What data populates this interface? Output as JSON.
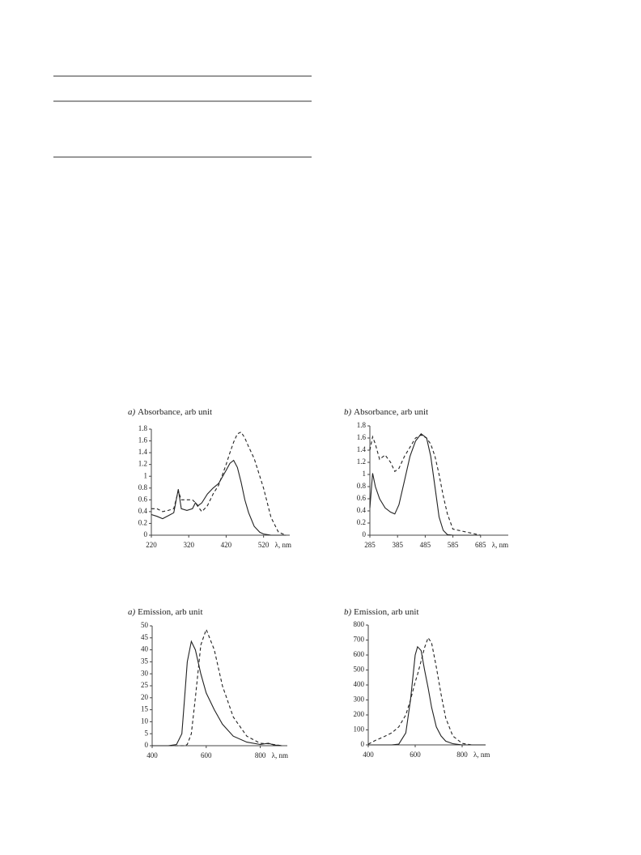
{
  "chart_data": [
    {
      "type": "line",
      "panel": "a)",
      "title": "Absorbance, arb unit",
      "x_label": "λ, nm",
      "x": [
        220,
        235,
        250,
        265,
        280,
        292,
        300,
        315,
        330,
        338,
        345,
        355,
        370,
        385,
        400,
        420,
        430,
        440,
        450,
        460,
        470,
        480,
        495,
        510,
        520,
        540,
        560,
        580
      ],
      "series": [
        {
          "color": "#222222",
          "dash": false,
          "values": [
            0.35,
            0.32,
            0.28,
            0.33,
            0.38,
            0.78,
            0.45,
            0.42,
            0.45,
            0.55,
            0.5,
            0.55,
            0.7,
            0.8,
            0.88,
            1.1,
            1.22,
            1.27,
            1.15,
            0.9,
            0.6,
            0.38,
            0.15,
            0.05,
            0.02,
            0,
            0,
            0
          ]
        },
        {
          "color": "#222222",
          "dash": true,
          "values": [
            0.45,
            0.45,
            0.4,
            0.42,
            0.45,
            0.75,
            0.6,
            0.6,
            0.6,
            0.55,
            0.48,
            0.4,
            0.5,
            0.7,
            0.85,
            1.2,
            1.4,
            1.58,
            1.72,
            1.75,
            1.65,
            1.5,
            1.3,
            1.0,
            0.8,
            0.3,
            0.05,
            0
          ]
        }
      ],
      "xlim": [
        220,
        590
      ],
      "xticks": [
        220,
        320,
        420,
        520
      ],
      "ylim": [
        0,
        1.8
      ],
      "yticks": [
        0,
        0.2,
        0.4,
        0.6,
        0.8,
        1,
        1.2,
        1.4,
        1.6,
        1.8
      ]
    },
    {
      "type": "line",
      "panel": "b)",
      "title": "Absorbance, arb unit",
      "x_label": "λ, nm",
      "x": [
        285,
        295,
        305,
        320,
        340,
        360,
        375,
        390,
        410,
        430,
        450,
        470,
        490,
        505,
        520,
        535,
        550,
        565,
        585,
        685
      ],
      "series": [
        {
          "color": "#222222",
          "dash": false,
          "values": [
            0.45,
            1.02,
            0.8,
            0.6,
            0.45,
            0.38,
            0.35,
            0.5,
            0.9,
            1.3,
            1.55,
            1.67,
            1.6,
            1.3,
            0.8,
            0.3,
            0.08,
            0.01,
            0,
            0
          ]
        },
        {
          "color": "#222222",
          "dash": true,
          "values": [
            1.4,
            1.62,
            1.5,
            1.25,
            1.32,
            1.2,
            1.05,
            1.1,
            1.3,
            1.45,
            1.6,
            1.65,
            1.6,
            1.5,
            1.3,
            1.0,
            0.65,
            0.35,
            0.1,
            0
          ]
        }
      ],
      "xlim": [
        285,
        785
      ],
      "xticks": [
        285,
        385,
        485,
        585,
        685
      ],
      "ylim": [
        0,
        1.8
      ],
      "yticks": [
        0,
        0.2,
        0.4,
        0.6,
        0.8,
        1,
        1.2,
        1.4,
        1.6,
        1.8
      ]
    },
    {
      "type": "line",
      "panel": "a)",
      "title": "Emission, arb unit",
      "x_label": "λ, nm",
      "x": [
        400,
        460,
        490,
        510,
        520,
        530,
        545,
        560,
        580,
        600,
        630,
        660,
        700,
        750,
        800,
        830,
        850,
        880
      ],
      "series": [
        {
          "color": "#222222",
          "dash": false,
          "values": [
            0,
            0,
            0.5,
            5,
            20,
            35,
            43.5,
            40,
            30,
            22,
            15,
            9,
            4,
            1.5,
            0.5,
            1,
            0.3,
            0
          ]
        },
        {
          "color": "#222222",
          "dash": true,
          "values": [
            0,
            0,
            0,
            0,
            0,
            0.5,
            5,
            20,
            42,
            48.5,
            40,
            25,
            12,
            4,
            1,
            0.8,
            0.5,
            0
          ]
        }
      ],
      "xlim": [
        400,
        900
      ],
      "xticks": [
        400,
        600,
        800
      ],
      "ylim": [
        0,
        50
      ],
      "yticks": [
        0,
        5,
        10,
        15,
        20,
        25,
        30,
        35,
        40,
        45,
        50
      ]
    },
    {
      "type": "line",
      "panel": "b)",
      "title": "Emission, arb unit",
      "x_label": "λ, nm",
      "x": [
        400,
        430,
        460,
        500,
        530,
        560,
        580,
        600,
        610,
        625,
        640,
        655,
        670,
        690,
        710,
        730,
        760,
        800,
        840,
        900
      ],
      "series": [
        {
          "color": "#222222",
          "dash": false,
          "values": [
            0,
            0,
            0,
            0,
            5,
            80,
            300,
            600,
            655,
            630,
            500,
            380,
            250,
            120,
            60,
            25,
            8,
            0,
            0,
            0
          ]
        },
        {
          "color": "#222222",
          "dash": true,
          "values": [
            5,
            30,
            50,
            80,
            120,
            200,
            300,
            420,
            470,
            560,
            650,
            715,
            680,
            520,
            340,
            180,
            60,
            10,
            0,
            0
          ]
        }
      ],
      "xlim": [
        400,
        900
      ],
      "xticks": [
        400,
        600,
        800
      ],
      "ylim": [
        0,
        800
      ],
      "yticks": [
        0,
        100,
        200,
        300,
        400,
        500,
        600,
        700,
        800
      ]
    }
  ]
}
